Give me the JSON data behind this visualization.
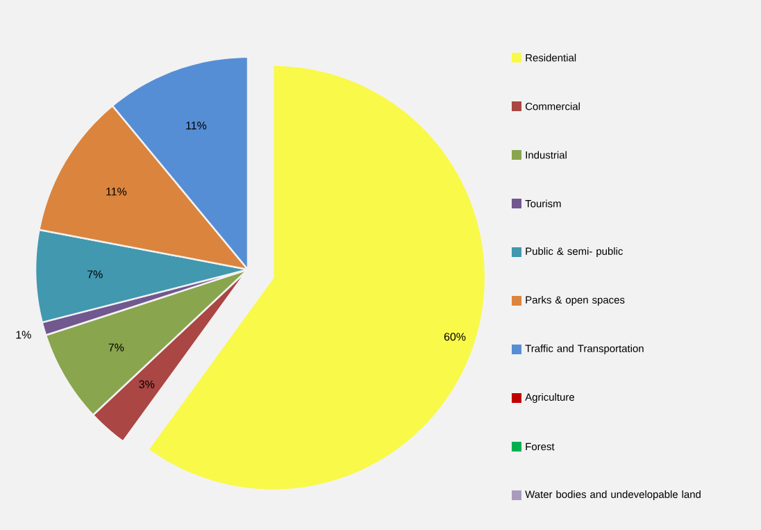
{
  "chart_data": {
    "type": "pie",
    "categories": [
      "Residential",
      "Commercial",
      "Industrial",
      "Tourism",
      "Public & semi- public",
      "Parks & open spaces",
      "Traffic and Transportation",
      "Agriculture",
      "Forest",
      "Water bodies and undevelopable land"
    ],
    "values": [
      60,
      3,
      7,
      1,
      7,
      11,
      11,
      0,
      0,
      0
    ],
    "colors": [
      "#f9f94a",
      "#aa4643",
      "#89a54e",
      "#71588f",
      "#4198af",
      "#db843d",
      "#558ed5",
      "#c00000",
      "#00b050",
      "#a99bbd"
    ],
    "value_labels": [
      "60%",
      "3%",
      "7%",
      "1%",
      "7%",
      "11%",
      "11%",
      null,
      null,
      null
    ],
    "legend": "right"
  }
}
